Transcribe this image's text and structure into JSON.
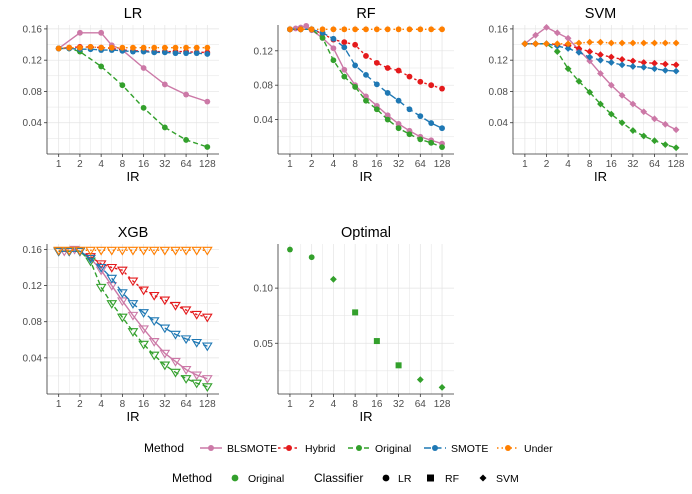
{
  "figure": {
    "colors": {
      "BLSMOTE": "#cc79a7",
      "Hybrid": "#e41a1c",
      "Original": "#33a02c",
      "SMOTE": "#1f78b4",
      "Under": "#ff7f00",
      "grid": "#e3e3e3",
      "axis": "#333333"
    }
  },
  "legend": {
    "row1_title": "Method",
    "row1_items": [
      "BLSMOTE",
      "Hybrid",
      "Original",
      "SMOTE",
      "Under"
    ],
    "row2_method_title": "Method",
    "row2_method_item": "Original",
    "row2_classifier_title": "Classifier",
    "row2_classifier_items": [
      "LR",
      "RF",
      "SVM"
    ]
  },
  "chart_data": [
    {
      "type": "line",
      "title": "LR",
      "xlabel": "IR",
      "x": [
        1,
        1.41,
        2,
        2.83,
        4,
        5.66,
        8,
        11.3,
        16,
        22.6,
        32,
        45.3,
        64,
        90.5,
        128
      ],
      "xticks": [
        "1",
        "2",
        "4",
        "8",
        "16",
        "32",
        "64",
        "128"
      ],
      "ylim": [
        0,
        0.165
      ],
      "yticks": [
        "0.04",
        "0.08",
        "0.12",
        "0.16"
      ],
      "series": [
        {
          "name": "BLSMOTE",
          "x": [
            1,
            2,
            4,
            5.66,
            8,
            16,
            32,
            64,
            128
          ],
          "values": [
            0.135,
            0.155,
            0.155,
            0.139,
            0.133,
            0.11,
            0.089,
            0.076,
            0.067
          ]
        },
        {
          "name": "Hybrid",
          "x": [
            1,
            1.41,
            2,
            2.83,
            4,
            5.66,
            8,
            11.3,
            16,
            22.6,
            32,
            45.3,
            64,
            90.5,
            128
          ],
          "values": [
            0.135,
            0.136,
            0.137,
            0.137,
            0.136,
            0.135,
            0.133,
            0.132,
            0.132,
            0.131,
            0.131,
            0.131,
            0.131,
            0.13,
            0.13
          ]
        },
        {
          "name": "Original",
          "x": [
            1,
            1.41,
            2,
            4,
            8,
            16,
            32,
            64,
            128
          ],
          "values": [
            0.135,
            0.135,
            0.131,
            0.112,
            0.088,
            0.059,
            0.034,
            0.018,
            0.009
          ]
        },
        {
          "name": "SMOTE",
          "x": [
            1,
            1.41,
            2,
            2.83,
            4,
            5.66,
            8,
            11.3,
            16,
            22.6,
            32,
            45.3,
            64,
            90.5,
            128
          ],
          "values": [
            0.135,
            0.135,
            0.134,
            0.134,
            0.133,
            0.133,
            0.132,
            0.131,
            0.131,
            0.13,
            0.13,
            0.129,
            0.129,
            0.129,
            0.128
          ]
        },
        {
          "name": "Under",
          "x": [
            1,
            1.41,
            2,
            2.83,
            4,
            5.66,
            8,
            11.3,
            16,
            22.6,
            32,
            45.3,
            64,
            90.5,
            128
          ],
          "values": [
            0.135,
            0.136,
            0.136,
            0.137,
            0.136,
            0.136,
            0.136,
            0.136,
            0.136,
            0.136,
            0.136,
            0.136,
            0.136,
            0.136,
            0.136
          ]
        }
      ]
    },
    {
      "type": "line",
      "title": "RF",
      "xlabel": "IR",
      "ylim": [
        0,
        0.15
      ],
      "yticks": [
        "0.04",
        "0.08",
        "0.12"
      ],
      "xticks": [
        "1",
        "2",
        "4",
        "8",
        "16",
        "32",
        "64",
        "128"
      ],
      "series": [
        {
          "name": "BLSMOTE",
          "x": [
            1,
            1.2,
            1.41,
            1.68,
            2,
            2.83,
            4,
            5.66,
            8,
            11.3,
            16,
            22.6,
            32,
            45.3,
            64,
            90.5,
            128
          ],
          "values": [
            0.145,
            0.146,
            0.147,
            0.149,
            0.144,
            0.135,
            0.123,
            0.098,
            0.08,
            0.067,
            0.056,
            0.045,
            0.035,
            0.027,
            0.02,
            0.016,
            0.012
          ]
        },
        {
          "name": "Hybrid",
          "x": [
            1,
            1.41,
            2,
            2.83,
            4,
            5.66,
            8,
            11.3,
            16,
            22.6,
            32,
            45.3,
            64,
            90.5,
            128
          ],
          "values": [
            0.145,
            0.145,
            0.145,
            0.14,
            0.133,
            0.13,
            0.127,
            0.114,
            0.106,
            0.1,
            0.097,
            0.09,
            0.084,
            0.08,
            0.076
          ]
        },
        {
          "name": "Original",
          "x": [
            1,
            1.41,
            2,
            2.83,
            4,
            5.66,
            8,
            11.3,
            16,
            22.6,
            32,
            45.3,
            64,
            90.5,
            128
          ],
          "values": [
            0.145,
            0.145,
            0.145,
            0.135,
            0.109,
            0.09,
            0.078,
            0.062,
            0.052,
            0.04,
            0.03,
            0.023,
            0.017,
            0.013,
            0.008
          ]
        },
        {
          "name": "SMOTE",
          "x": [
            1,
            1.41,
            2,
            2.83,
            4,
            5.66,
            8,
            11.3,
            16,
            22.6,
            32,
            45.3,
            64,
            90.5,
            128
          ],
          "values": [
            0.145,
            0.145,
            0.145,
            0.141,
            0.134,
            0.124,
            0.103,
            0.092,
            0.081,
            0.071,
            0.062,
            0.052,
            0.044,
            0.036,
            0.03
          ]
        },
        {
          "name": "Under",
          "x": [
            1,
            1.41,
            2,
            2.83,
            4,
            5.66,
            8,
            11.3,
            16,
            22.6,
            32,
            45.3,
            64,
            90.5,
            128
          ],
          "values": [
            0.145,
            0.145,
            0.145,
            0.145,
            0.145,
            0.145,
            0.145,
            0.145,
            0.145,
            0.145,
            0.145,
            0.145,
            0.145,
            0.145,
            0.145
          ]
        }
      ]
    },
    {
      "type": "line",
      "title": "SVM",
      "xlabel": "IR",
      "ylim": [
        0,
        0.165
      ],
      "yticks": [
        "0.04",
        "0.08",
        "0.12",
        "0.16"
      ],
      "xticks": [
        "1",
        "2",
        "4",
        "8",
        "16",
        "32",
        "64",
        "128"
      ],
      "series": [
        {
          "name": "BLSMOTE",
          "x": [
            1,
            1.41,
            2,
            2.83,
            4,
            5.66,
            8,
            11.3,
            16,
            22.6,
            32,
            45.3,
            64,
            90.5,
            128
          ],
          "values": [
            0.141,
            0.152,
            0.162,
            0.155,
            0.148,
            0.133,
            0.119,
            0.103,
            0.088,
            0.075,
            0.064,
            0.054,
            0.045,
            0.038,
            0.031
          ]
        },
        {
          "name": "Hybrid",
          "x": [
            1,
            1.41,
            2,
            2.83,
            4,
            5.66,
            8,
            11.3,
            16,
            22.6,
            32,
            45.3,
            64,
            90.5,
            128
          ],
          "values": [
            0.141,
            0.141,
            0.141,
            0.14,
            0.139,
            0.135,
            0.131,
            0.127,
            0.124,
            0.121,
            0.119,
            0.117,
            0.116,
            0.115,
            0.114
          ]
        },
        {
          "name": "Original",
          "x": [
            1,
            1.41,
            2,
            2.83,
            4,
            5.66,
            8,
            11.3,
            16,
            22.6,
            32,
            45.3,
            64,
            90.5,
            128
          ],
          "values": [
            0.141,
            0.141,
            0.141,
            0.131,
            0.109,
            0.093,
            0.079,
            0.064,
            0.051,
            0.04,
            0.03,
            0.023,
            0.017,
            0.012,
            0.008
          ]
        },
        {
          "name": "SMOTE",
          "x": [
            1,
            1.41,
            2,
            2.83,
            4,
            5.66,
            8,
            11.3,
            16,
            22.6,
            32,
            45.3,
            64,
            90.5,
            128
          ],
          "values": [
            0.141,
            0.141,
            0.141,
            0.138,
            0.135,
            0.13,
            0.124,
            0.12,
            0.117,
            0.114,
            0.112,
            0.111,
            0.109,
            0.107,
            0.106
          ]
        },
        {
          "name": "Under",
          "x": [
            1,
            1.41,
            2,
            2.83,
            4,
            5.66,
            8,
            11.3,
            16,
            22.6,
            32,
            45.3,
            64,
            90.5,
            128
          ],
          "values": [
            0.141,
            0.141,
            0.141,
            0.141,
            0.141,
            0.142,
            0.143,
            0.143,
            0.142,
            0.142,
            0.142,
            0.142,
            0.142,
            0.142,
            0.142
          ]
        }
      ]
    },
    {
      "type": "line",
      "title": "XGB",
      "xlabel": "IR",
      "ylim": [
        0,
        0.166
      ],
      "yticks": [
        "0.04",
        "0.08",
        "0.12",
        "0.16"
      ],
      "xticks": [
        "1",
        "2",
        "4",
        "8",
        "16",
        "32",
        "64",
        "128"
      ],
      "series": [
        {
          "name": "BLSMOTE",
          "x": [
            1,
            1.2,
            1.41,
            1.68,
            2,
            2.83,
            4,
            5.66,
            8,
            11.3,
            16,
            22.6,
            32,
            45.3,
            64,
            90.5,
            128
          ],
          "values": [
            0.158,
            0.158,
            0.158,
            0.16,
            0.158,
            0.15,
            0.137,
            0.12,
            0.103,
            0.087,
            0.072,
            0.058,
            0.045,
            0.036,
            0.027,
            0.021,
            0.017
          ]
        },
        {
          "name": "Hybrid",
          "x": [
            1,
            1.41,
            2,
            2.83,
            4,
            5.66,
            8,
            11.3,
            16,
            22.6,
            32,
            45.3,
            64,
            90.5,
            128
          ],
          "values": [
            0.158,
            0.158,
            0.158,
            0.152,
            0.144,
            0.14,
            0.137,
            0.125,
            0.115,
            0.109,
            0.104,
            0.098,
            0.093,
            0.088,
            0.085
          ]
        },
        {
          "name": "Original",
          "x": [
            1,
            1.41,
            2,
            2.83,
            4,
            5.66,
            8,
            11.3,
            16,
            22.6,
            32,
            45.3,
            64,
            90.5,
            128
          ],
          "values": [
            0.158,
            0.158,
            0.158,
            0.147,
            0.118,
            0.1,
            0.085,
            0.069,
            0.055,
            0.043,
            0.032,
            0.024,
            0.017,
            0.012,
            0.008
          ]
        },
        {
          "name": "SMOTE",
          "x": [
            1,
            1.41,
            2,
            2.83,
            4,
            5.66,
            8,
            11.3,
            16,
            22.6,
            32,
            45.3,
            64,
            90.5,
            128
          ],
          "values": [
            0.158,
            0.158,
            0.158,
            0.15,
            0.14,
            0.128,
            0.112,
            0.1,
            0.09,
            0.081,
            0.073,
            0.066,
            0.061,
            0.057,
            0.053
          ]
        },
        {
          "name": "Under",
          "x": [
            1,
            1.41,
            2,
            2.83,
            4,
            5.66,
            8,
            11.3,
            16,
            22.6,
            32,
            45.3,
            64,
            90.5,
            128
          ],
          "values": [
            0.159,
            0.159,
            0.159,
            0.159,
            0.159,
            0.159,
            0.159,
            0.159,
            0.159,
            0.159,
            0.159,
            0.159,
            0.159,
            0.159,
            0.159
          ]
        }
      ]
    },
    {
      "type": "scatter",
      "title": "Optimal",
      "xlabel": "IR",
      "ylim": [
        0.004,
        0.14
      ],
      "yticks": [
        "0.05",
        "0.10"
      ],
      "xticks": [
        "1",
        "2",
        "4",
        "8",
        "16",
        "32",
        "64",
        "128"
      ],
      "series": [
        {
          "name": "Original",
          "x": [
            1,
            2,
            4,
            8,
            16,
            32,
            64,
            128
          ],
          "values": [
            0.135,
            0.128,
            0.108,
            0.078,
            0.052,
            0.03,
            0.017,
            0.01
          ],
          "classifier": [
            "LR",
            "LR",
            "SVM",
            "RF",
            "RF",
            "RF",
            "SVM",
            "SVM"
          ]
        }
      ]
    }
  ]
}
